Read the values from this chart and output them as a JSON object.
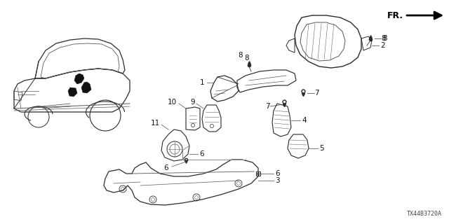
{
  "background_color": "#ffffff",
  "diagram_code": "TX44B3720A",
  "fr_label": "FR.",
  "line_color": "#2a2a2a",
  "label_color": "#111111",
  "lw_main": 0.8,
  "lw_detail": 0.5,
  "figsize": [
    6.4,
    3.2
  ],
  "dpi": 100
}
